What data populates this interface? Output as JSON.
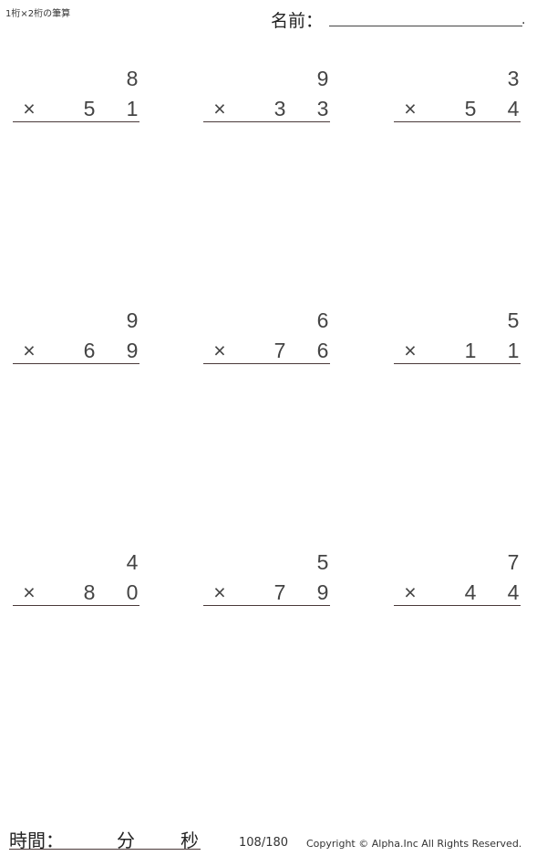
{
  "title": "1桁×2桁の筆算",
  "name_label": "名前：",
  "name_end": ".",
  "operator": "×",
  "problems": [
    {
      "top": "8",
      "tens": "5",
      "ones": "1"
    },
    {
      "top": "9",
      "tens": "3",
      "ones": "3"
    },
    {
      "top": "3",
      "tens": "5",
      "ones": "4"
    },
    {
      "top": "9",
      "tens": "6",
      "ones": "9"
    },
    {
      "top": "6",
      "tens": "7",
      "ones": "6"
    },
    {
      "top": "5",
      "tens": "1",
      "ones": "1"
    },
    {
      "top": "4",
      "tens": "8",
      "ones": "0"
    },
    {
      "top": "5",
      "tens": "7",
      "ones": "9"
    },
    {
      "top": "7",
      "tens": "4",
      "ones": "4"
    }
  ],
  "time": {
    "label": "時間：",
    "minutes": "分",
    "seconds": "秒"
  },
  "page_number": "108/180",
  "copyright": "Copyright © Alpha.Inc All Rights Reserved."
}
